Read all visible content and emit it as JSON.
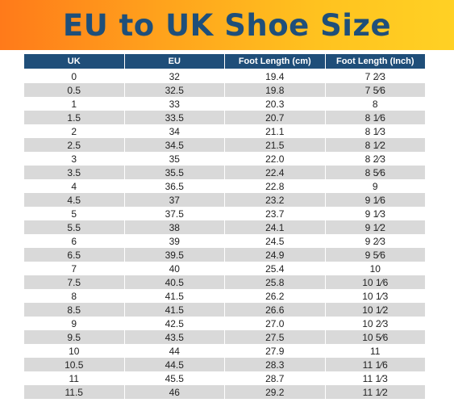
{
  "title": "EU to UK Shoe Size",
  "table": {
    "headers": [
      "UK",
      "EU",
      "Foot Length (cm)",
      "Foot Length (Inch)"
    ],
    "rows": [
      [
        "0",
        "32",
        "19.4",
        "7 2⁄3"
      ],
      [
        "0.5",
        "32.5",
        "19.8",
        "7 5⁄6"
      ],
      [
        "1",
        "33",
        "20.3",
        "8"
      ],
      [
        "1.5",
        "33.5",
        "20.7",
        "8 1⁄6"
      ],
      [
        "2",
        "34",
        "21.1",
        "8 1⁄3"
      ],
      [
        "2.5",
        "34.5",
        "21.5",
        "8 1⁄2"
      ],
      [
        "3",
        "35",
        "22.0",
        "8 2⁄3"
      ],
      [
        "3.5",
        "35.5",
        "22.4",
        "8 5⁄6"
      ],
      [
        "4",
        "36.5",
        "22.8",
        "9"
      ],
      [
        "4.5",
        "37",
        "23.2",
        "9 1⁄6"
      ],
      [
        "5",
        "37.5",
        "23.7",
        "9 1⁄3"
      ],
      [
        "5.5",
        "38",
        "24.1",
        "9 1⁄2"
      ],
      [
        "6",
        "39",
        "24.5",
        "9 2⁄3"
      ],
      [
        "6.5",
        "39.5",
        "24.9",
        "9 5⁄6"
      ],
      [
        "7",
        "40",
        "25.4",
        "10"
      ],
      [
        "7.5",
        "40.5",
        "25.8",
        "10 1⁄6"
      ],
      [
        "8",
        "41.5",
        "26.2",
        "10 1⁄3"
      ],
      [
        "8.5",
        "41.5",
        "26.6",
        "10 1⁄2"
      ],
      [
        "9",
        "42.5",
        "27.0",
        "10 2⁄3"
      ],
      [
        "9.5",
        "43.5",
        "27.5",
        "10 5⁄6"
      ],
      [
        "10",
        "44",
        "27.9",
        "11"
      ],
      [
        "10.5",
        "44.5",
        "28.3",
        "11 1⁄6"
      ],
      [
        "11",
        "45.5",
        "28.7",
        "11 1⁄3"
      ],
      [
        "11.5",
        "46",
        "29.2",
        "11 1⁄2"
      ]
    ]
  },
  "colors": {
    "header_bg": "#1f4e79",
    "title_text": "#1f4f7a",
    "banner_start": "#ff7a1a",
    "banner_end": "#ffd124",
    "stripe": "#d9d9d9"
  }
}
